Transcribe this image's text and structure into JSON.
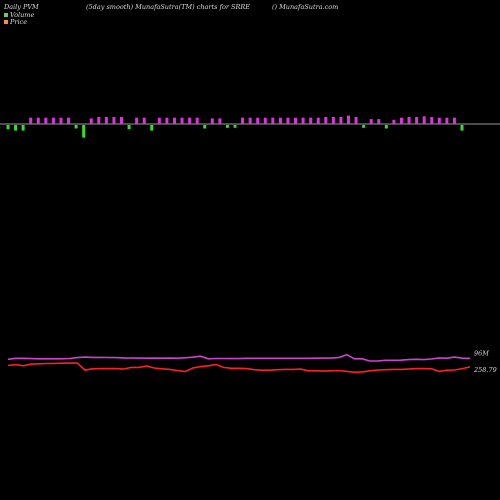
{
  "header": {
    "left": "Daily PVM",
    "center": "(5day smooth) MunafaSutra(TM) charts for SRRE",
    "right": "() MunafaSutra.com"
  },
  "legend": [
    {
      "label": "Volume",
      "color": "#66cc66"
    },
    {
      "label": "Price",
      "color": "#ff8844"
    }
  ],
  "colors": {
    "up": "#e030e0",
    "down": "#33dd33",
    "price": "#ff2020",
    "volume": "#cc44cc"
  },
  "chart_data": {
    "type": "line",
    "bars": {
      "dir": [
        -1,
        -1,
        -1,
        1,
        1,
        1,
        1,
        1,
        1,
        -1,
        -1,
        1,
        1,
        1,
        1,
        1,
        -1,
        1,
        1,
        -1,
        1,
        1,
        1,
        1,
        1,
        1,
        -1,
        1,
        1,
        -1,
        -1,
        1,
        1,
        1,
        1,
        1,
        1,
        1,
        1,
        1,
        1,
        1,
        1,
        1,
        1,
        1,
        1,
        -1,
        1,
        1,
        -1,
        1,
        1,
        1,
        1,
        1,
        1,
        1,
        1,
        1,
        -1
      ],
      "up": [
        0,
        0,
        0,
        0.9,
        0.9,
        0.9,
        0.9,
        0.9,
        0.9,
        0,
        0,
        0.8,
        1.0,
        1.0,
        1.0,
        1.0,
        0,
        0.9,
        0.9,
        0,
        0.9,
        0.9,
        0.9,
        0.9,
        0.9,
        0.9,
        0,
        0.8,
        0.8,
        0,
        0,
        0.9,
        0.9,
        0.9,
        0.9,
        0.9,
        0.9,
        0.9,
        0.9,
        0.9,
        0.9,
        0.9,
        1.0,
        1.0,
        1.0,
        1.2,
        1.0,
        0,
        0.7,
        0.7,
        0,
        0.6,
        0.9,
        1.0,
        1.0,
        1.1,
        1.0,
        0.9,
        0.9,
        0.9,
        0
      ],
      "down": [
        0.6,
        0.8,
        0.8,
        0,
        0,
        0,
        0,
        0,
        0,
        0.5,
        1.8,
        0,
        0,
        0,
        0,
        0,
        0.6,
        0,
        0,
        0.8,
        0,
        0,
        0,
        0,
        0,
        0,
        0.5,
        0,
        0,
        0.4,
        0.4,
        0,
        0,
        0,
        0,
        0,
        0,
        0,
        0,
        0,
        0,
        0,
        0,
        0,
        0,
        0,
        0,
        0.4,
        0,
        0,
        0.5,
        0,
        0,
        0,
        0,
        0,
        0,
        0,
        0,
        0,
        0.8
      ]
    },
    "series": [
      {
        "values": [
          0.62,
          0.69,
          0.69,
          0.67,
          0.66,
          0.66,
          0.66,
          0.66,
          0.68,
          0.74,
          0.78,
          0.76,
          0.76,
          0.75,
          0.74,
          0.72,
          0.71,
          0.71,
          0.7,
          0.71,
          0.7,
          0.71,
          0.7,
          0.73,
          0.77,
          0.84,
          0.66,
          0.68,
          0.68,
          0.67,
          0.67,
          0.69,
          0.69,
          0.69,
          0.69,
          0.69,
          0.69,
          0.69,
          0.69,
          0.69,
          0.7,
          0.71,
          0.71,
          0.76,
          0.95,
          0.66,
          0.66,
          0.5,
          0.5,
          0.55,
          0.55,
          0.56,
          0.6,
          0.62,
          0.6,
          0.64,
          0.72,
          0.7,
          0.78,
          0.7,
          0.69
        ]
      },
      {
        "values": [
          0.18,
          0.24,
          0.16,
          0.28,
          0.3,
          0.32,
          0.33,
          0.34,
          0.35,
          0.36,
          -0.15,
          -0.06,
          -0.04,
          -0.04,
          -0.04,
          -0.08,
          0.04,
          0.04,
          0.14,
          0.0,
          -0.06,
          -0.1,
          -0.18,
          -0.26,
          0.0,
          0.1,
          0.16,
          0.24,
          0.04,
          -0.02,
          -0.02,
          -0.04,
          -0.12,
          -0.16,
          -0.16,
          -0.12,
          -0.1,
          -0.1,
          -0.08,
          -0.2,
          -0.2,
          -0.22,
          -0.2,
          -0.18,
          -0.24,
          -0.3,
          -0.28,
          -0.2,
          -0.14,
          -0.12,
          -0.1,
          -0.1,
          -0.08,
          -0.04,
          -0.04,
          -0.06,
          -0.24,
          -0.16,
          -0.14,
          -0.04,
          0.08
        ]
      }
    ],
    "annotations": [
      {
        "text": "96M",
        "series": 0
      },
      {
        "text": "258.79",
        "series": 1
      }
    ]
  }
}
